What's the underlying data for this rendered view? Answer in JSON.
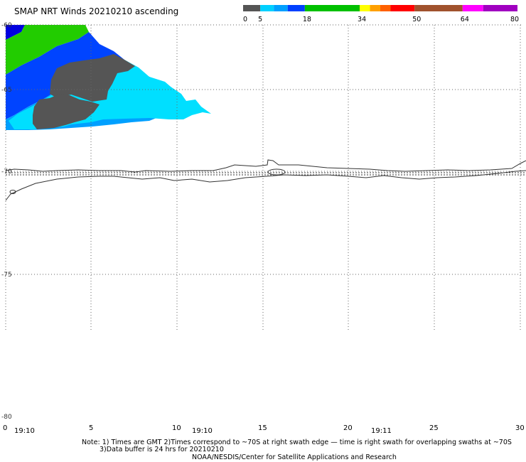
{
  "title": "SMAP NRT Winds 20210210 ascending",
  "colorbar": {
    "tick_labels": [
      "0",
      "5",
      "18",
      "34",
      "50",
      "64",
      "80"
    ],
    "segments": [
      {
        "from": 0,
        "to": 5,
        "color": "#555555"
      },
      {
        "from": 5,
        "to": 9,
        "color": "#00d0ff"
      },
      {
        "from": 9,
        "to": 13,
        "color": "#00a0ff"
      },
      {
        "from": 13,
        "to": 18,
        "color": "#0040ff"
      },
      {
        "from": 18,
        "to": 34,
        "color": "#00c000"
      },
      {
        "from": 34,
        "to": 37,
        "color": "#ffff00"
      },
      {
        "from": 37,
        "to": 40,
        "color": "#ffa000"
      },
      {
        "from": 40,
        "to": 43,
        "color": "#ff6000"
      },
      {
        "from": 43,
        "to": 50,
        "color": "#ff0000"
      },
      {
        "from": 50,
        "to": 64,
        "color": "#a0522d"
      },
      {
        "from": 64,
        "to": 70,
        "color": "#ff00ff"
      },
      {
        "from": 70,
        "to": 80,
        "color": "#a000c0"
      }
    ]
  },
  "map": {
    "lat_labels": [
      "-60",
      "-65",
      "-70",
      "-75",
      "-80"
    ],
    "lon_labels": [
      "0",
      "5",
      "10",
      "15",
      "20",
      "25",
      "30"
    ],
    "time_labels": [
      "19:10",
      "19:10",
      "19:11"
    ],
    "colors": {
      "calm": "#555555",
      "cyan": "#00dfff",
      "lightblue": "#00a0ff",
      "blue": "#0044ff",
      "darkblue": "#0000e0",
      "green": "#22cc00",
      "coast": "#333333",
      "grid": "#666666"
    }
  },
  "notes": {
    "line1": "Note: 1) Times are GMT 2)Times correspond to ~70S at right swath edge — time is right swath for overlapping swaths at ~70S",
    "line2": "3)Data buffer is 24 hrs for 20210210",
    "line3": "NOAA/NESDIS/Center for Satellite Applications and Research"
  }
}
